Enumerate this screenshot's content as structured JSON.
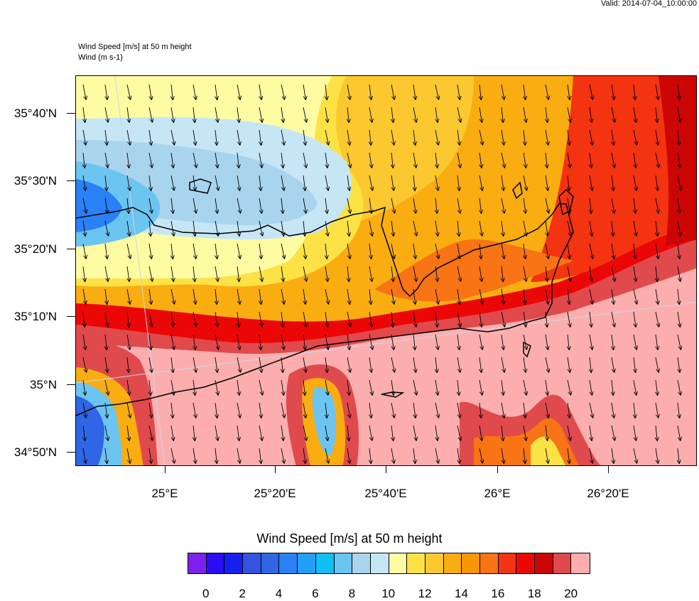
{
  "header": {
    "valid": "Valid: 2014-07-04_10:00:00",
    "field_title": "Wind Speed [m/s] at 50 m height",
    "vector_title": "Wind   (m s-1)"
  },
  "axes": {
    "lat_labels": [
      "35°40'N",
      "35°30'N",
      "35°20'N",
      "35°10'N",
      "35°N",
      "34°50'N"
    ],
    "lon_labels": [
      "25°E",
      "25°20'E",
      "25°40'E",
      "26°E",
      "26°20'E"
    ]
  },
  "colorbar": {
    "title": "Wind Speed [m/s] at 50 m height",
    "colors": [
      "#7d22ee",
      "#2a0cf5",
      "#1621f0",
      "#3653e0",
      "#3066e6",
      "#2a80f5",
      "#22a0f7",
      "#0fc0f6",
      "#6cc4f1",
      "#a8d4ee",
      "#c6e6f5",
      "#fefca3",
      "#fde246",
      "#fbc92f",
      "#f9ad11",
      "#f89606",
      "#f87414",
      "#f43310",
      "#ec0707",
      "#cc0505",
      "#e04a4d",
      "#fcaeae"
    ],
    "labels": [
      "0",
      "2",
      "4",
      "6",
      "8",
      "10",
      "12",
      "14",
      "16",
      "18",
      "20"
    ]
  },
  "map_regions": {
    "base_color": "#fcaeae",
    "colors": {
      "light_blue": "#c6e6f5",
      "mid_blue": "#a8d4ee",
      "blue": "#6cc4f1",
      "deep_blue": "#2a80f5",
      "pale_yellow": "#fefca3",
      "yellow": "#fde246",
      "gold": "#fbc92f",
      "orange": "#f9ad11",
      "dark_orange": "#f87414",
      "red": "#f43310",
      "crimson": "#ec0707",
      "dark_red": "#cc0505",
      "rose": "#e04a4d",
      "pink": "#fcaeae"
    }
  }
}
